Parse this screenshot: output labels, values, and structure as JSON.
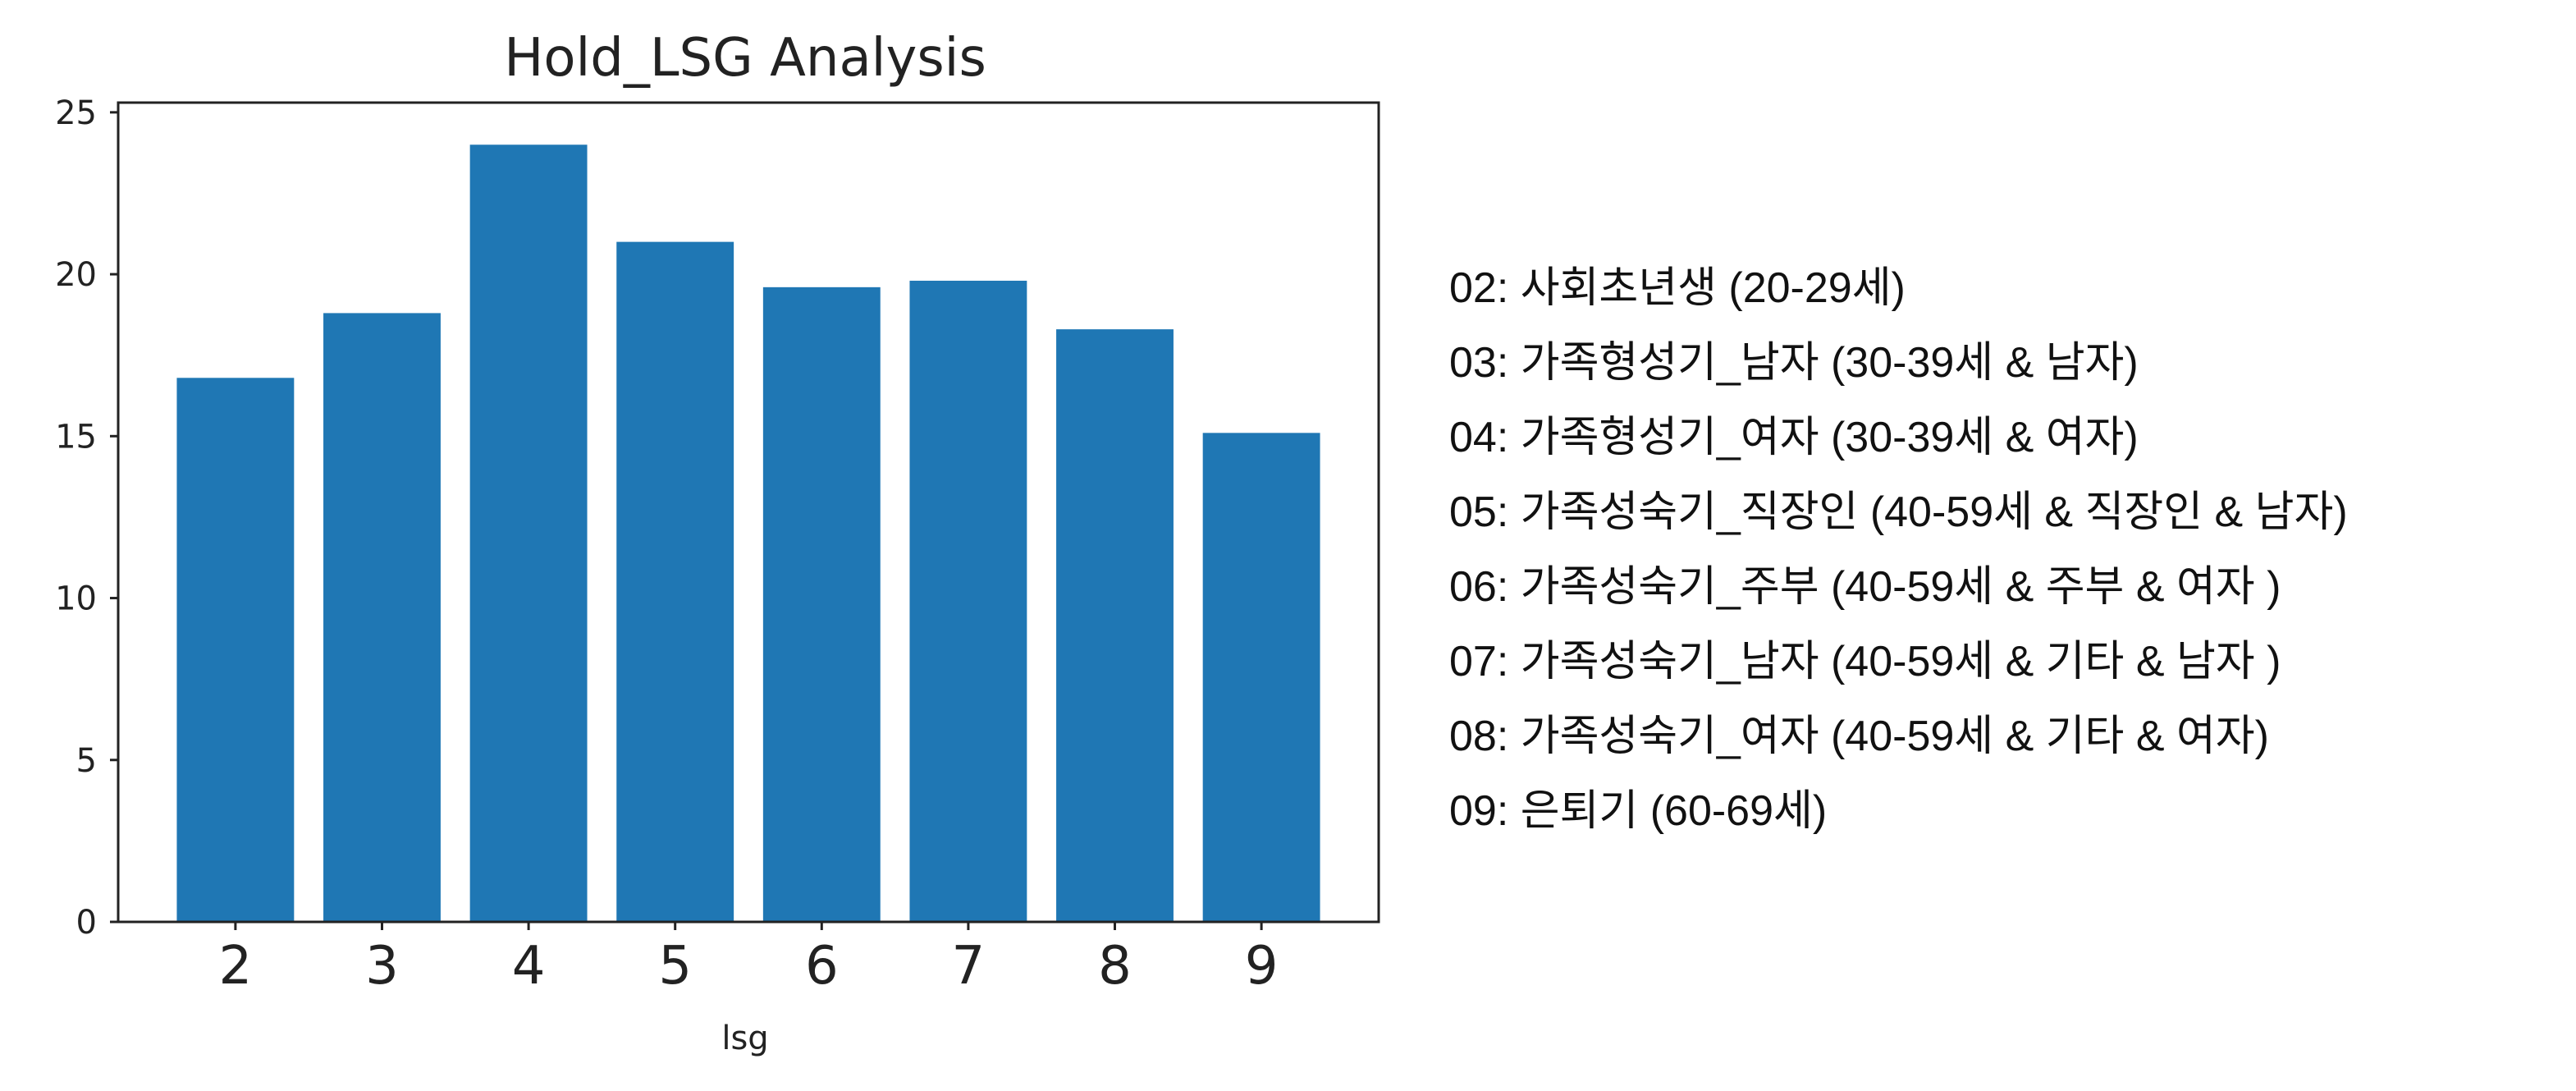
{
  "chart_data": {
    "type": "bar",
    "title": "Hold_LSG Analysis",
    "xlabel": "lsg",
    "ylabel": "",
    "categories": [
      "2",
      "3",
      "4",
      "5",
      "6",
      "7",
      "8",
      "9"
    ],
    "values": [
      16.8,
      18.8,
      24.0,
      21.0,
      19.6,
      19.8,
      18.3,
      15.1
    ],
    "ylim": [
      0,
      25.3
    ],
    "yticks": [
      "0",
      "5",
      "10",
      "15",
      "20",
      "25"
    ],
    "bar_color": "#1f77b4",
    "grid": false
  },
  "legend_notes": [
    "02: 사회초년생 (20-29세)",
    "03: 가족형성기_남자 (30-39세 & 남자)",
    "04: 가족형성기_여자 (30-39세 & 여자)",
    "05: 가족성숙기_직장인 (40-59세 & 직장인 & 남자)",
    "06: 가족성숙기_주부 (40-59세 & 주부 & 여자 )",
    "07: 가족성숙기_남자 (40-59세 & 기타 & 남자 )",
    "08: 가족성숙기_여자 (40-59세 & 기타 & 여자)",
    "09: 은퇴기 (60-69세)"
  ]
}
